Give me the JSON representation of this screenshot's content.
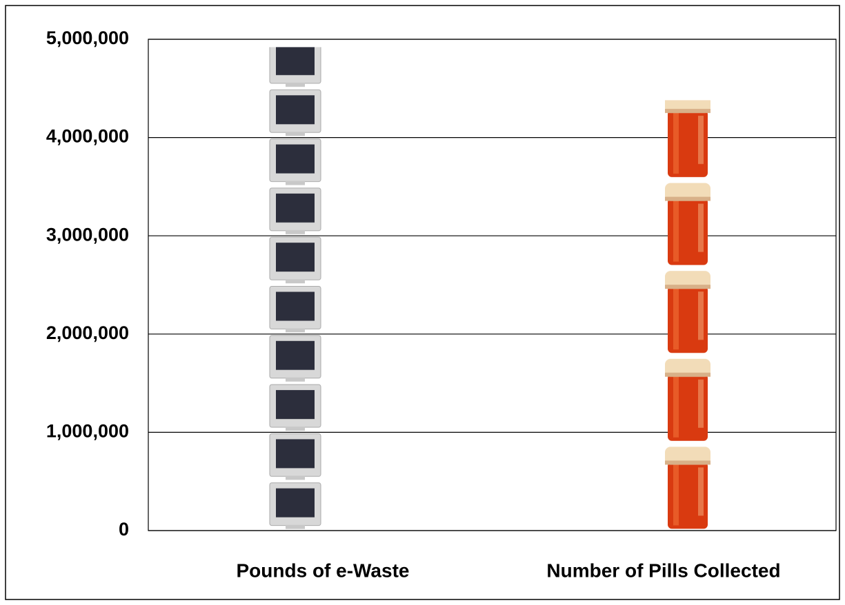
{
  "chart_data": {
    "type": "pictograph",
    "categories": [
      "Pounds of e-Waste",
      "Number of Pills Collected"
    ],
    "values": [
      4920000,
      4380000
    ],
    "ylim": [
      0,
      5000000
    ],
    "yticks": [
      0,
      {
        "value": 1000000,
        "label": "1,000,000"
      },
      {
        "value": 2000000,
        "label": "2,000,000"
      },
      {
        "value": 3000000,
        "label": "3,000,000"
      },
      {
        "value": 4000000,
        "label": "4,000,000"
      },
      {
        "value": 5000000,
        "label": "5,000,000"
      }
    ],
    "grid": true
  }
}
